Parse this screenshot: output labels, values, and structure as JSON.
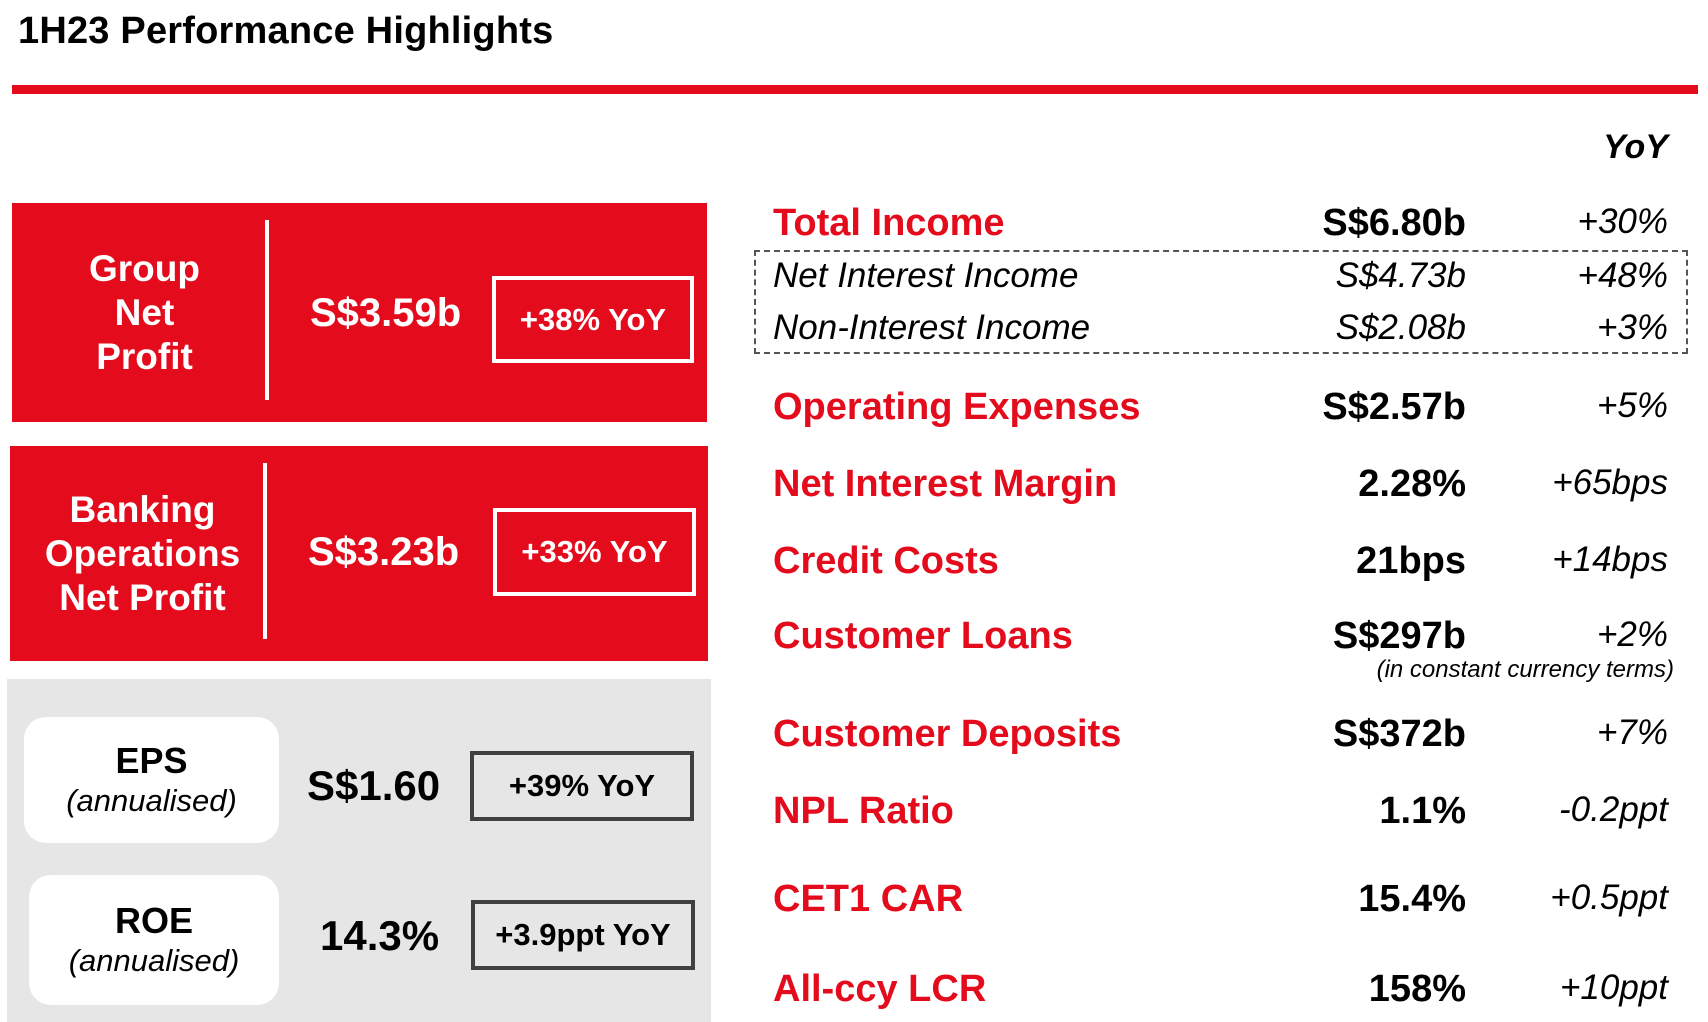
{
  "title": "1H23 Performance Highlights",
  "highlights": [
    {
      "label_lines": [
        "Group",
        "Net",
        "Profit"
      ],
      "value": "S$3.59b",
      "change": "+38% YoY"
    },
    {
      "label_lines": [
        "Banking",
        "Operations",
        "Net Profit"
      ],
      "value": "S$3.23b",
      "change": "+33% YoY"
    }
  ],
  "metrics": [
    {
      "name": "EPS",
      "sub": "(annualised)",
      "value": "S$1.60",
      "change": "+39% YoY"
    },
    {
      "name": "ROE",
      "sub": "(annualised)",
      "value": "14.3%",
      "change": "+3.9ppt YoY"
    }
  ],
  "table": {
    "yoy_header": "YoY",
    "rows": [
      {
        "label": "Total Income",
        "value": "S$6.80b",
        "change": "+30%"
      },
      {
        "label": "Net Interest Income",
        "value": "S$4.73b",
        "change": "+48%"
      },
      {
        "label": "Non-Interest Income",
        "value": "S$2.08b",
        "change": "+3%"
      },
      {
        "label": "Operating Expenses",
        "value": "S$2.57b",
        "change": "+5%"
      },
      {
        "label": "Net Interest Margin",
        "value": "2.28%",
        "change": "+65bps"
      },
      {
        "label": "Credit Costs",
        "value": "21bps",
        "change": "+14bps"
      },
      {
        "label": "Customer Loans",
        "value": "S$297b",
        "change": "+2%"
      },
      {
        "label": "Customer Deposits",
        "value": "S$372b",
        "change": "+7%"
      },
      {
        "label": "NPL Ratio",
        "value": "1.1%",
        "change": "-0.2ppt"
      },
      {
        "label": "CET1 CAR",
        "value": "15.4%",
        "change": "+0.5ppt"
      },
      {
        "label": "All-ccy LCR",
        "value": "158%",
        "change": "+10ppt"
      }
    ],
    "loans_note": "(in constant currency terms)"
  },
  "colors": {
    "accent": "#e30b1c",
    "panel_grey": "#e6e6e6"
  }
}
